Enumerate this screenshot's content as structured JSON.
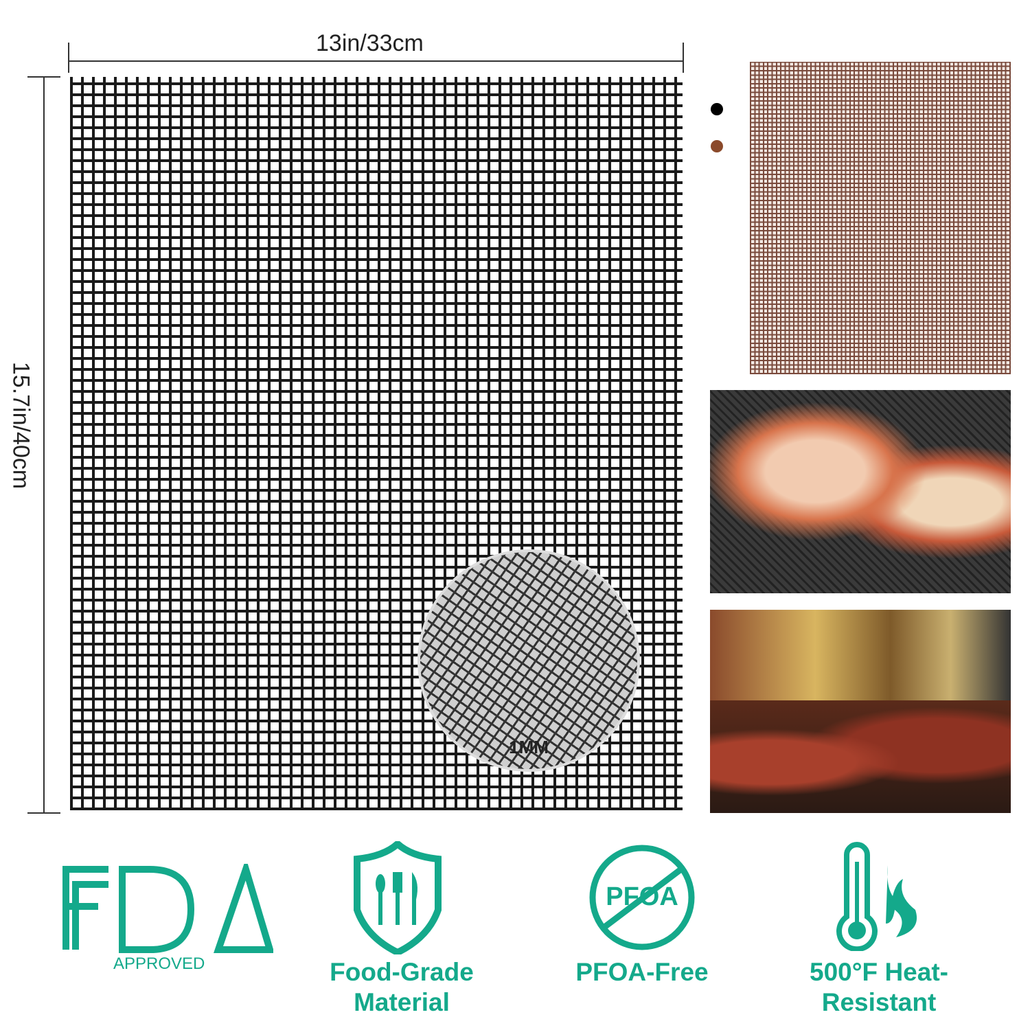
{
  "dimensions": {
    "width_label": "13in/33cm",
    "height_label": "15.7in/40cm"
  },
  "zoom_inset": {
    "label": "1MM"
  },
  "colors": {
    "options": [
      "#000000",
      "#8b4a2b"
    ],
    "accent": "#14a98b"
  },
  "features": [
    {
      "icon": "fda-logo",
      "logo_text": "FDA",
      "label": "APPROVED"
    },
    {
      "icon": "shield-cutlery-icon",
      "label_line1": "Food-Grade",
      "label_line2": "Material"
    },
    {
      "icon": "no-pfoa-icon",
      "icon_text": "PFOA",
      "label_line1": "PFOA-Free"
    },
    {
      "icon": "thermometer-flame-icon",
      "label_line1": "500°F Heat-",
      "label_line2": "Resistant"
    }
  ]
}
